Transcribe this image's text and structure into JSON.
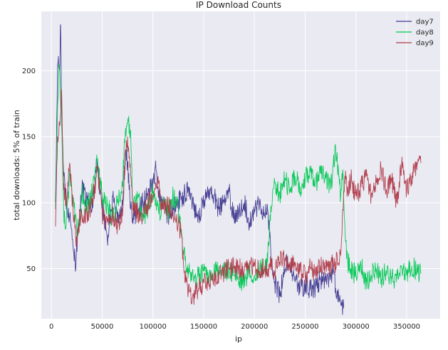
{
  "chart_data": {
    "type": "line",
    "title": "IP Download Counts",
    "xlabel": "ip",
    "ylabel": "total downloads: 5% of train",
    "xlim": [
      -10000,
      383000
    ],
    "ylim": [
      12,
      245
    ],
    "x_ticks": [
      0,
      50000,
      100000,
      150000,
      200000,
      250000,
      300000,
      350000
    ],
    "y_ticks": [
      50,
      100,
      150,
      200
    ],
    "grid": true,
    "background": "#eaeaf2",
    "legend_position": "top-right",
    "series": [
      {
        "name": "day7",
        "color": "#3f3a8f",
        "points": [
          [
            4000,
            100
          ],
          [
            6000,
            205
          ],
          [
            8000,
            200
          ],
          [
            9000,
            235
          ],
          [
            10000,
            170
          ],
          [
            12000,
            120
          ],
          [
            15000,
            100
          ],
          [
            18000,
            90
          ],
          [
            20000,
            80
          ],
          [
            22000,
            62
          ],
          [
            24000,
            50
          ],
          [
            26000,
            75
          ],
          [
            28000,
            95
          ],
          [
            30000,
            110
          ],
          [
            35000,
            102
          ],
          [
            40000,
            95
          ],
          [
            43000,
            120
          ],
          [
            45000,
            130
          ],
          [
            48000,
            110
          ],
          [
            50000,
            98
          ],
          [
            52000,
            90
          ],
          [
            55000,
            72
          ],
          [
            58000,
            88
          ],
          [
            60000,
            105
          ],
          [
            65000,
            85
          ],
          [
            70000,
            98
          ],
          [
            73000,
            140
          ],
          [
            75000,
            130
          ],
          [
            78000,
            95
          ],
          [
            80000,
            88
          ],
          [
            85000,
            95
          ],
          [
            90000,
            100
          ],
          [
            95000,
            105
          ],
          [
            100000,
            115
          ],
          [
            103000,
            125
          ],
          [
            105000,
            112
          ],
          [
            108000,
            100
          ],
          [
            110000,
            98
          ],
          [
            115000,
            90
          ],
          [
            120000,
            95
          ],
          [
            125000,
            100
          ],
          [
            130000,
            105
          ],
          [
            135000,
            112
          ],
          [
            140000,
            98
          ],
          [
            145000,
            90
          ],
          [
            150000,
            100
          ],
          [
            155000,
            110
          ],
          [
            160000,
            105
          ],
          [
            165000,
            95
          ],
          [
            170000,
            100
          ],
          [
            175000,
            108
          ],
          [
            180000,
            88
          ],
          [
            185000,
            95
          ],
          [
            190000,
            100
          ],
          [
            195000,
            85
          ],
          [
            200000,
            95
          ],
          [
            205000,
            100
          ],
          [
            210000,
            90
          ],
          [
            213000,
            95
          ],
          [
            216000,
            65
          ],
          [
            218000,
            45
          ],
          [
            220000,
            40
          ],
          [
            222000,
            35
          ],
          [
            225000,
            30
          ],
          [
            228000,
            42
          ],
          [
            232000,
            55
          ],
          [
            235000,
            52
          ],
          [
            240000,
            40
          ],
          [
            245000,
            35
          ],
          [
            250000,
            38
          ],
          [
            255000,
            34
          ],
          [
            260000,
            36
          ],
          [
            265000,
            42
          ],
          [
            270000,
            40
          ],
          [
            275000,
            44
          ],
          [
            278000,
            48
          ],
          [
            280000,
            35
          ],
          [
            283000,
            28
          ],
          [
            286000,
            22
          ],
          [
            288000,
            20
          ]
        ]
      },
      {
        "name": "day8",
        "color": "#00c853",
        "points": [
          [
            4000,
            95
          ],
          [
            6000,
            175
          ],
          [
            8000,
            205
          ],
          [
            10000,
            160
          ],
          [
            12000,
            95
          ],
          [
            14000,
            80
          ],
          [
            16000,
            100
          ],
          [
            18000,
            125
          ],
          [
            20000,
            110
          ],
          [
            22000,
            100
          ],
          [
            25000,
            75
          ],
          [
            28000,
            90
          ],
          [
            30000,
            108
          ],
          [
            35000,
            95
          ],
          [
            40000,
            108
          ],
          [
            43000,
            125
          ],
          [
            45000,
            132
          ],
          [
            48000,
            115
          ],
          [
            50000,
            105
          ],
          [
            55000,
            98
          ],
          [
            60000,
            88
          ],
          [
            65000,
            100
          ],
          [
            70000,
            112
          ],
          [
            72000,
            148
          ],
          [
            75000,
            160
          ],
          [
            78000,
            155
          ],
          [
            80000,
            100
          ],
          [
            85000,
            105
          ],
          [
            90000,
            88
          ],
          [
            95000,
            95
          ],
          [
            100000,
            110
          ],
          [
            105000,
            98
          ],
          [
            108000,
            90
          ],
          [
            110000,
            100
          ],
          [
            115000,
            92
          ],
          [
            120000,
            105
          ],
          [
            125000,
            95
          ],
          [
            128000,
            80
          ],
          [
            130000,
            62
          ],
          [
            135000,
            50
          ],
          [
            140000,
            42
          ],
          [
            145000,
            44
          ],
          [
            150000,
            48
          ],
          [
            155000,
            40
          ],
          [
            160000,
            45
          ],
          [
            165000,
            52
          ],
          [
            170000,
            46
          ],
          [
            175000,
            50
          ],
          [
            180000,
            45
          ],
          [
            185000,
            40
          ],
          [
            190000,
            42
          ],
          [
            195000,
            48
          ],
          [
            200000,
            45
          ],
          [
            205000,
            50
          ],
          [
            210000,
            50
          ],
          [
            213000,
            55
          ],
          [
            215000,
            85
          ],
          [
            218000,
            110
          ],
          [
            220000,
            115
          ],
          [
            225000,
            105
          ],
          [
            230000,
            118
          ],
          [
            235000,
            110
          ],
          [
            240000,
            120
          ],
          [
            245000,
            112
          ],
          [
            250000,
            118
          ],
          [
            255000,
            125
          ],
          [
            260000,
            115
          ],
          [
            265000,
            122
          ],
          [
            270000,
            118
          ],
          [
            275000,
            110
          ],
          [
            280000,
            142
          ],
          [
            283000,
            120
          ],
          [
            285000,
            105
          ],
          [
            287000,
            125
          ],
          [
            290000,
            70
          ],
          [
            292000,
            55
          ],
          [
            295000,
            50
          ],
          [
            300000,
            45
          ],
          [
            305000,
            52
          ],
          [
            310000,
            40
          ],
          [
            315000,
            45
          ],
          [
            320000,
            50
          ],
          [
            325000,
            42
          ],
          [
            330000,
            48
          ],
          [
            335000,
            44
          ],
          [
            340000,
            40
          ],
          [
            345000,
            50
          ],
          [
            350000,
            45
          ],
          [
            355000,
            52
          ],
          [
            360000,
            48
          ],
          [
            364000,
            46
          ]
        ]
      },
      {
        "name": "day9",
        "color": "#b03a48",
        "points": [
          [
            4000,
            82
          ],
          [
            6000,
            150
          ],
          [
            8000,
            160
          ],
          [
            10000,
            185
          ],
          [
            12000,
            110
          ],
          [
            15000,
            100
          ],
          [
            18000,
            130
          ],
          [
            20000,
            110
          ],
          [
            22000,
            85
          ],
          [
            25000,
            68
          ],
          [
            28000,
            90
          ],
          [
            30000,
            88
          ],
          [
            35000,
            92
          ],
          [
            40000,
            98
          ],
          [
            45000,
            125
          ],
          [
            48000,
            110
          ],
          [
            50000,
            92
          ],
          [
            55000,
            85
          ],
          [
            60000,
            90
          ],
          [
            65000,
            82
          ],
          [
            70000,
            90
          ],
          [
            73000,
            140
          ],
          [
            75000,
            150
          ],
          [
            78000,
            120
          ],
          [
            80000,
            95
          ],
          [
            85000,
            92
          ],
          [
            90000,
            88
          ],
          [
            95000,
            100
          ],
          [
            100000,
            105
          ],
          [
            105000,
            120
          ],
          [
            108000,
            100
          ],
          [
            110000,
            95
          ],
          [
            115000,
            98
          ],
          [
            120000,
            90
          ],
          [
            125000,
            85
          ],
          [
            128000,
            75
          ],
          [
            130000,
            55
          ],
          [
            133000,
            40
          ],
          [
            136000,
            32
          ],
          [
            140000,
            30
          ],
          [
            145000,
            35
          ],
          [
            150000,
            40
          ],
          [
            155000,
            38
          ],
          [
            160000,
            42
          ],
          [
            165000,
            45
          ],
          [
            170000,
            48
          ],
          [
            175000,
            50
          ],
          [
            180000,
            52
          ],
          [
            185000,
            50
          ],
          [
            190000,
            48
          ],
          [
            195000,
            52
          ],
          [
            200000,
            52
          ],
          [
            205000,
            48
          ],
          [
            210000,
            50
          ],
          [
            215000,
            52
          ],
          [
            220000,
            48
          ],
          [
            225000,
            55
          ],
          [
            230000,
            58
          ],
          [
            235000,
            55
          ],
          [
            240000,
            52
          ],
          [
            245000,
            48
          ],
          [
            250000,
            45
          ],
          [
            255000,
            50
          ],
          [
            260000,
            48
          ],
          [
            265000,
            52
          ],
          [
            270000,
            50
          ],
          [
            275000,
            52
          ],
          [
            280000,
            55
          ],
          [
            283000,
            54
          ],
          [
            285000,
            60
          ],
          [
            287000,
            95
          ],
          [
            289000,
            120
          ],
          [
            292000,
            110
          ],
          [
            295000,
            118
          ],
          [
            300000,
            105
          ],
          [
            305000,
            112
          ],
          [
            310000,
            120
          ],
          [
            315000,
            105
          ],
          [
            320000,
            115
          ],
          [
            325000,
            125
          ],
          [
            330000,
            110
          ],
          [
            335000,
            118
          ],
          [
            340000,
            100
          ],
          [
            345000,
            128
          ],
          [
            350000,
            110
          ],
          [
            355000,
            120
          ],
          [
            360000,
            125
          ],
          [
            364000,
            130
          ]
        ]
      }
    ]
  }
}
